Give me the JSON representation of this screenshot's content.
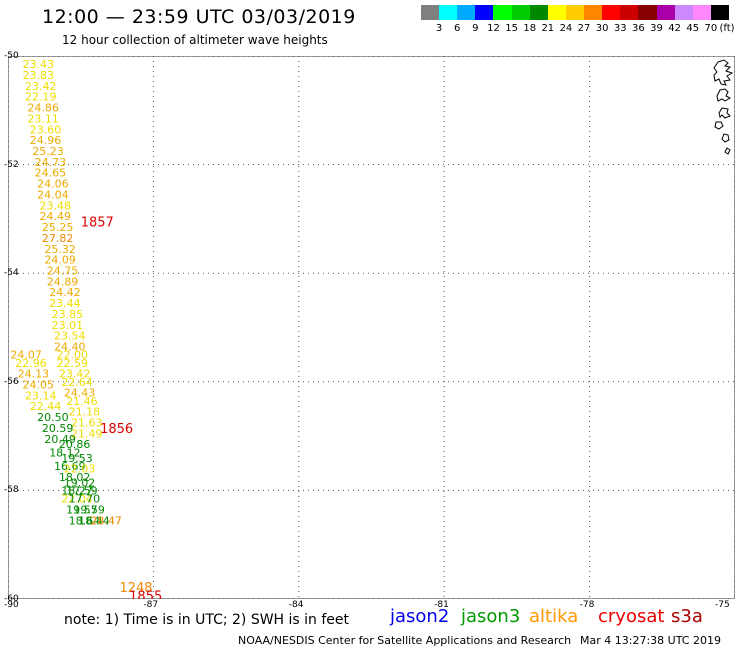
{
  "header": {
    "title": "12:00 — 23:59 UTC 03/03/2019",
    "subtitle": "12 hour collection of altimeter wave heights"
  },
  "color_scale": {
    "unit": "(ft)",
    "ticks": [
      "3",
      "6",
      "9",
      "12",
      "15",
      "18",
      "21",
      "24",
      "27",
      "30",
      "33",
      "36",
      "39",
      "42",
      "45",
      "70"
    ],
    "colors": [
      "#7f7f7f",
      "#00ffff",
      "#00aaff",
      "#0000ff",
      "#00ff00",
      "#00cc00",
      "#008800",
      "#ffff00",
      "#ffcc00",
      "#ff8800",
      "#ff0000",
      "#cc0000",
      "#880000",
      "#aa00aa",
      "#cc88ff",
      "#ff88ff",
      "#000000"
    ]
  },
  "map": {
    "lat_labels": [
      "-50",
      "-52",
      "-54",
      "-56",
      "-58",
      "-60"
    ],
    "lon_labels": [
      "-90",
      "-87",
      "-84",
      "-81",
      "-78",
      "-75"
    ],
    "time_labels": [
      {
        "text": "1857",
        "lat": -53.05,
        "lon": -88.5,
        "color": "#dd0000"
      },
      {
        "text": "1856",
        "lat": -56.85,
        "lon": -88.1,
        "color": "#dd0000"
      },
      {
        "text": "1248",
        "lat": -59.78,
        "lon": -87.7,
        "color": "#ee8800"
      },
      {
        "text": "1855",
        "lat": -59.94,
        "lon": -87.5,
        "color": "#dd0000"
      }
    ],
    "observations": [
      {
        "v": "23.43",
        "lat": -50.15,
        "lon": -89.7,
        "c": "#eedd00"
      },
      {
        "v": "23.83",
        "lat": -50.35,
        "lon": -89.7,
        "c": "#eedd00"
      },
      {
        "v": "23.42",
        "lat": -50.55,
        "lon": -89.65,
        "c": "#eedd00"
      },
      {
        "v": "22.19",
        "lat": -50.75,
        "lon": -89.65,
        "c": "#eedd00"
      },
      {
        "v": "24.86",
        "lat": -50.95,
        "lon": -89.6,
        "c": "#eeaa00"
      },
      {
        "v": "23.11",
        "lat": -51.15,
        "lon": -89.6,
        "c": "#eedd00"
      },
      {
        "v": "23.60",
        "lat": -51.35,
        "lon": -89.55,
        "c": "#eedd00"
      },
      {
        "v": "24.96",
        "lat": -51.55,
        "lon": -89.55,
        "c": "#eeaa00"
      },
      {
        "v": "25.23",
        "lat": -51.75,
        "lon": -89.5,
        "c": "#eeaa00"
      },
      {
        "v": "24.73",
        "lat": -51.95,
        "lon": -89.45,
        "c": "#eeaa00"
      },
      {
        "v": "24.65",
        "lat": -52.15,
        "lon": -89.45,
        "c": "#eeaa00"
      },
      {
        "v": "24.06",
        "lat": -52.35,
        "lon": -89.4,
        "c": "#eeaa00"
      },
      {
        "v": "24.04",
        "lat": -52.55,
        "lon": -89.4,
        "c": "#eeaa00"
      },
      {
        "v": "23.48",
        "lat": -52.75,
        "lon": -89.35,
        "c": "#eedd00"
      },
      {
        "v": "24.49",
        "lat": -52.95,
        "lon": -89.35,
        "c": "#eeaa00"
      },
      {
        "v": "25.25",
        "lat": -53.15,
        "lon": -89.3,
        "c": "#eeaa00"
      },
      {
        "v": "27.82",
        "lat": -53.35,
        "lon": -89.3,
        "c": "#ee8800"
      },
      {
        "v": "25.32",
        "lat": -53.55,
        "lon": -89.25,
        "c": "#eeaa00"
      },
      {
        "v": "24.09",
        "lat": -53.75,
        "lon": -89.25,
        "c": "#eeaa00"
      },
      {
        "v": "24.75",
        "lat": -53.95,
        "lon": -89.2,
        "c": "#eeaa00"
      },
      {
        "v": "24.89",
        "lat": -54.15,
        "lon": -89.2,
        "c": "#eeaa00"
      },
      {
        "v": "24.42",
        "lat": -54.35,
        "lon": -89.15,
        "c": "#eeaa00"
      },
      {
        "v": "23.44",
        "lat": -54.55,
        "lon": -89.15,
        "c": "#eedd00"
      },
      {
        "v": "23.85",
        "lat": -54.75,
        "lon": -89.1,
        "c": "#eedd00"
      },
      {
        "v": "23.01",
        "lat": -54.95,
        "lon": -89.1,
        "c": "#eedd00"
      },
      {
        "v": "23.54",
        "lat": -55.15,
        "lon": -89.05,
        "c": "#eedd00"
      },
      {
        "v": "24.40",
        "lat": -55.35,
        "lon": -89.05,
        "c": "#eeaa00"
      },
      {
        "v": "22.00",
        "lat": -55.5,
        "lon": -89.0,
        "c": "#eedd00"
      },
      {
        "v": "24.07",
        "lat": -55.5,
        "lon": -89.95,
        "c": "#eeaa00"
      },
      {
        "v": "22.96",
        "lat": -55.65,
        "lon": -89.85,
        "c": "#eedd00"
      },
      {
        "v": "22.59",
        "lat": -55.65,
        "lon": -89.0,
        "c": "#eedd00"
      },
      {
        "v": "23.42",
        "lat": -55.85,
        "lon": -88.95,
        "c": "#eedd00"
      },
      {
        "v": "24.13",
        "lat": -55.85,
        "lon": -89.8,
        "c": "#eeaa00"
      },
      {
        "v": "22.64",
        "lat": -56.0,
        "lon": -88.9,
        "c": "#eedd00"
      },
      {
        "v": "24.05",
        "lat": -56.05,
        "lon": -89.7,
        "c": "#eeaa00"
      },
      {
        "v": "24.43",
        "lat": -56.2,
        "lon": -88.85,
        "c": "#eeaa00"
      },
      {
        "v": "23.14",
        "lat": -56.25,
        "lon": -89.65,
        "c": "#eedd00"
      },
      {
        "v": "21.46",
        "lat": -56.35,
        "lon": -88.8,
        "c": "#eedd00"
      },
      {
        "v": "22.44",
        "lat": -56.45,
        "lon": -89.55,
        "c": "#eedd00"
      },
      {
        "v": "21.18",
        "lat": -56.55,
        "lon": -88.75,
        "c": "#eedd00"
      },
      {
        "v": "20.50",
        "lat": -56.65,
        "lon": -89.4,
        "c": "#008800"
      },
      {
        "v": "21.63",
        "lat": -56.75,
        "lon": -88.7,
        "c": "#eedd00"
      },
      {
        "v": "20.59",
        "lat": -56.85,
        "lon": -89.3,
        "c": "#008800"
      },
      {
        "v": "21.49",
        "lat": -56.95,
        "lon": -88.7,
        "c": "#eedd00"
      },
      {
        "v": "20.49",
        "lat": -57.05,
        "lon": -89.25,
        "c": "#008800"
      },
      {
        "v": "20.86",
        "lat": -57.15,
        "lon": -88.95,
        "c": "#008800"
      },
      {
        "v": "18.12",
        "lat": -57.3,
        "lon": -89.15,
        "c": "#008800"
      },
      {
        "v": "19.53",
        "lat": -57.4,
        "lon": -88.9,
        "c": "#008800"
      },
      {
        "v": "16.69",
        "lat": -57.55,
        "lon": -89.05,
        "c": "#008800"
      },
      {
        "v": "22.03",
        "lat": -57.6,
        "lon": -88.85,
        "c": "#eedd00"
      },
      {
        "v": "18.02",
        "lat": -57.75,
        "lon": -88.95,
        "c": "#008800"
      },
      {
        "v": "19.02",
        "lat": -57.85,
        "lon": -88.85,
        "c": "#008800"
      },
      {
        "v": "18.27",
        "lat": -58.0,
        "lon": -88.9,
        "c": "#008800"
      },
      {
        "v": "17.59",
        "lat": -58.0,
        "lon": -88.8,
        "c": "#008800"
      },
      {
        "v": "22.04",
        "lat": -58.15,
        "lon": -88.9,
        "c": "#eedd00"
      },
      {
        "v": "17.70",
        "lat": -58.15,
        "lon": -88.75,
        "c": "#008800"
      },
      {
        "v": "19.57",
        "lat": -58.35,
        "lon": -88.8,
        "c": "#008800"
      },
      {
        "v": "19.59",
        "lat": -58.35,
        "lon": -88.65,
        "c": "#008800"
      },
      {
        "v": "18.64",
        "lat": -58.55,
        "lon": -88.75,
        "c": "#008800"
      },
      {
        "v": "18.44",
        "lat": -58.55,
        "lon": -88.55,
        "c": "#008800"
      },
      {
        "v": "28.47",
        "lat": -58.55,
        "lon": -88.3,
        "c": "#ee8800"
      }
    ]
  },
  "note": "note: 1) Time is in UTC; 2) SWH is in feet",
  "missions": [
    {
      "name": "jason2",
      "color": "#0000ee"
    },
    {
      "name": "jason3",
      "color": "#009900"
    },
    {
      "name": "altika",
      "color": "#ff9900"
    },
    {
      "name": "cryosat",
      "color": "#ee0000"
    },
    {
      "name": "s3a",
      "color": "#aa0000"
    }
  ],
  "footer": {
    "credit": "NOAA/NESDIS Center for Satellite Applications and Research",
    "timestamp": "Mar  4 13:27:38 UTC 2019"
  }
}
